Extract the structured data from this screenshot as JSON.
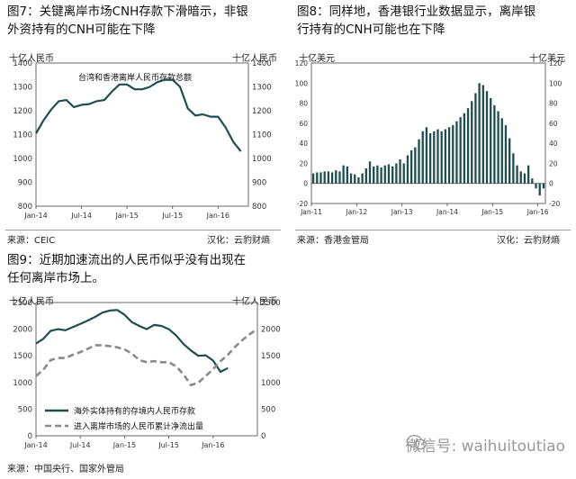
{
  "chart_data": [
    {
      "id": "fig7",
      "type": "line",
      "title_lines": [
        "图7：关键离岸市场CNH存款下滑暗示，非银",
        "外资持有的CNH可能在下降"
      ],
      "left_unit": "十亿人民币",
      "right_unit": "十亿人民币",
      "inner_label": "台湾和香港离岸人民币存款总额",
      "ylim": [
        800,
        1400
      ],
      "yticks": [
        800,
        900,
        1000,
        1100,
        1200,
        1300,
        1400
      ],
      "x_ticks": [
        "Jan-14",
        "Jul-14",
        "Jan-15",
        "Jul-15",
        "Jan-16"
      ],
      "x_tick_months": [
        0,
        6,
        12,
        18,
        24
      ],
      "x_range": [
        0,
        28
      ],
      "series": [
        {
          "color": "#1f4e4e",
          "x": [
            0,
            1,
            2,
            3,
            4,
            5,
            6,
            7,
            8,
            9,
            10,
            11,
            12,
            13,
            14,
            15,
            16,
            17,
            18,
            19,
            20,
            21,
            22,
            23,
            24,
            25,
            26,
            27
          ],
          "values": [
            1105,
            1160,
            1205,
            1240,
            1245,
            1215,
            1225,
            1228,
            1240,
            1245,
            1280,
            1310,
            1310,
            1290,
            1290,
            1300,
            1320,
            1330,
            1330,
            1300,
            1210,
            1180,
            1185,
            1175,
            1175,
            1130,
            1070,
            1030
          ]
        }
      ],
      "source": "来源：CEIC",
      "credit": "汉化：云豹财熵"
    },
    {
      "id": "fig8",
      "type": "bar",
      "title_lines": [
        "图8：同样地，香港银行业数据显示，离岸银",
        "行持有的CNH可能也在下降"
      ],
      "left_unit": "十亿美元",
      "right_unit": "十亿美元",
      "ylim": [
        -20,
        120
      ],
      "yticks": [
        -20,
        0,
        20,
        40,
        60,
        80,
        100,
        120
      ],
      "x_ticks": [
        "Jan-11",
        "Jan-12",
        "Jan-13",
        "Jan-14",
        "Jan-15",
        "Jan-16"
      ],
      "x_tick_months": [
        0,
        12,
        24,
        36,
        48,
        60
      ],
      "x_range": [
        0,
        62
      ],
      "bar_color": "#1f4e4e",
      "values": [
        10,
        11,
        11,
        12,
        12,
        11,
        13,
        12,
        18,
        17,
        10,
        9,
        6,
        10,
        15,
        22,
        17,
        18,
        16,
        18,
        19,
        17,
        20,
        24,
        20,
        28,
        33,
        36,
        44,
        52,
        56,
        50,
        52,
        54,
        52,
        54,
        56,
        58,
        62,
        66,
        70,
        75,
        82,
        90,
        100,
        98,
        92,
        85,
        78,
        72,
        65,
        58,
        45,
        30,
        18,
        12,
        10,
        18,
        5,
        -5,
        -12,
        -5
      ],
      "source": "来源：香港金管局",
      "credit": "汉化：云豹财熵"
    },
    {
      "id": "fig9",
      "type": "line",
      "title_lines": [
        "图9：近期加速流出的人民币似乎没有出现在",
        "任何离岸市场上。"
      ],
      "left_unit": "十亿人民币",
      "right_unit": "十亿人民币",
      "ylim": [
        0,
        2500
      ],
      "yticks": [
        0,
        500,
        1000,
        1500,
        2000,
        2500
      ],
      "x_ticks": [
        "Jan-14",
        "Jul-14",
        "Jan-15",
        "Jul-15",
        "Jan-16"
      ],
      "x_tick_months": [
        0,
        6,
        12,
        18,
        24
      ],
      "x_range": [
        0,
        30
      ],
      "series": [
        {
          "name": "海外实体持有的存境内人民币存款",
          "style": "solid",
          "color": "#1f4e4e",
          "x": [
            0,
            1,
            2,
            3,
            4,
            5,
            6,
            7,
            8,
            9,
            10,
            11,
            12,
            13,
            14,
            15,
            16,
            17,
            18,
            19,
            20,
            21,
            22,
            23,
            24,
            25,
            26
          ],
          "values": [
            1730,
            1820,
            1970,
            2000,
            1980,
            2040,
            2100,
            2160,
            2230,
            2310,
            2350,
            2360,
            2270,
            2130,
            2060,
            2000,
            2080,
            2060,
            2000,
            1880,
            1720,
            1600,
            1500,
            1510,
            1410,
            1200,
            1270
          ]
        },
        {
          "name": "进入离岸市场的人民币累计净流出量",
          "style": "dashed",
          "color": "#8a8a8a",
          "x": [
            0,
            1,
            2,
            3,
            4,
            5,
            6,
            7,
            8,
            9,
            10,
            11,
            12,
            13,
            14,
            15,
            16,
            17,
            18,
            19,
            20,
            21,
            22,
            23,
            24,
            25,
            26,
            27,
            28,
            29,
            30
          ],
          "values": [
            1120,
            1240,
            1420,
            1460,
            1460,
            1520,
            1570,
            1630,
            1700,
            1700,
            1680,
            1660,
            1620,
            1540,
            1420,
            1380,
            1400,
            1380,
            1380,
            1300,
            1150,
            950,
            1000,
            1120,
            1250,
            1400,
            1520,
            1670,
            1800,
            1910,
            2000
          ]
        }
      ],
      "source": "来源：中国央行、国家外管局"
    }
  ],
  "watermark": "微信号: waihuitoutiao"
}
